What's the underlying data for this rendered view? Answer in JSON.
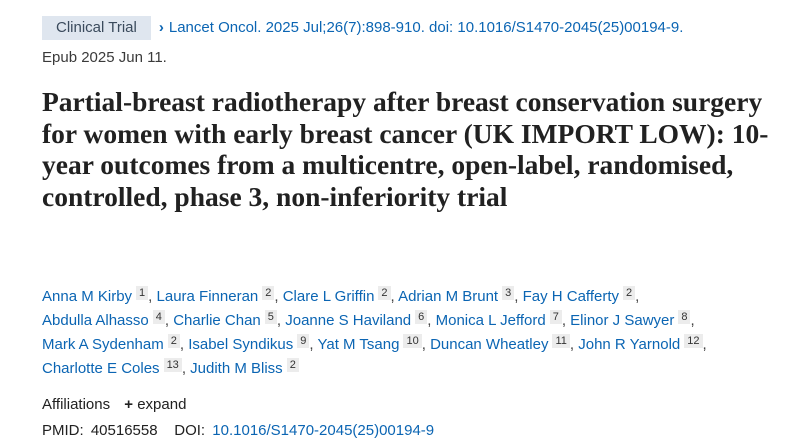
{
  "header": {
    "badge": "Clinical Trial",
    "citation": "Lancet Oncol. 2025 Jul;26(7):898-910. doi: 10.1016/S1470-2045(25)00194-9.",
    "epub": "Epub 2025 Jun 11."
  },
  "title": "Partial-breast radiotherapy after breast conservation surgery for women with early breast cancer (UK IMPORT LOW): 10-year outcomes from a multicentre, open-label, randomised, controlled, phase 3, non-inferiority trial",
  "authors": [
    {
      "name": "Anna M Kirby",
      "aff": "1"
    },
    {
      "name": "Laura Finneran",
      "aff": "2"
    },
    {
      "name": "Clare L Griffin",
      "aff": "2"
    },
    {
      "name": "Adrian M Brunt",
      "aff": "3"
    },
    {
      "name": "Fay H Cafferty",
      "aff": "2"
    },
    {
      "name": "Abdulla Alhasso",
      "aff": "4"
    },
    {
      "name": "Charlie Chan",
      "aff": "5"
    },
    {
      "name": "Joanne S Haviland",
      "aff": "6"
    },
    {
      "name": "Monica L Jefford",
      "aff": "7"
    },
    {
      "name": "Elinor J Sawyer",
      "aff": "8"
    },
    {
      "name": "Mark A Sydenham",
      "aff": "2"
    },
    {
      "name": "Isabel Syndikus",
      "aff": "9"
    },
    {
      "name": "Yat M Tsang",
      "aff": "10"
    },
    {
      "name": "Duncan Wheatley",
      "aff": "11"
    },
    {
      "name": "John R Yarnold",
      "aff": "12"
    },
    {
      "name": "Charlotte E Coles",
      "aff": "13"
    },
    {
      "name": "Judith M Bliss",
      "aff": "2"
    }
  ],
  "affiliations": {
    "label": "Affiliations",
    "expand": "expand"
  },
  "ids": {
    "pmid_label": "PMID:",
    "pmid": "40516558",
    "doi_label": "DOI:",
    "doi": "10.1016/S1470-2045(25)00194-9"
  },
  "colors": {
    "link": "#0b65b3",
    "badge_bg": "#dfe6ef"
  }
}
